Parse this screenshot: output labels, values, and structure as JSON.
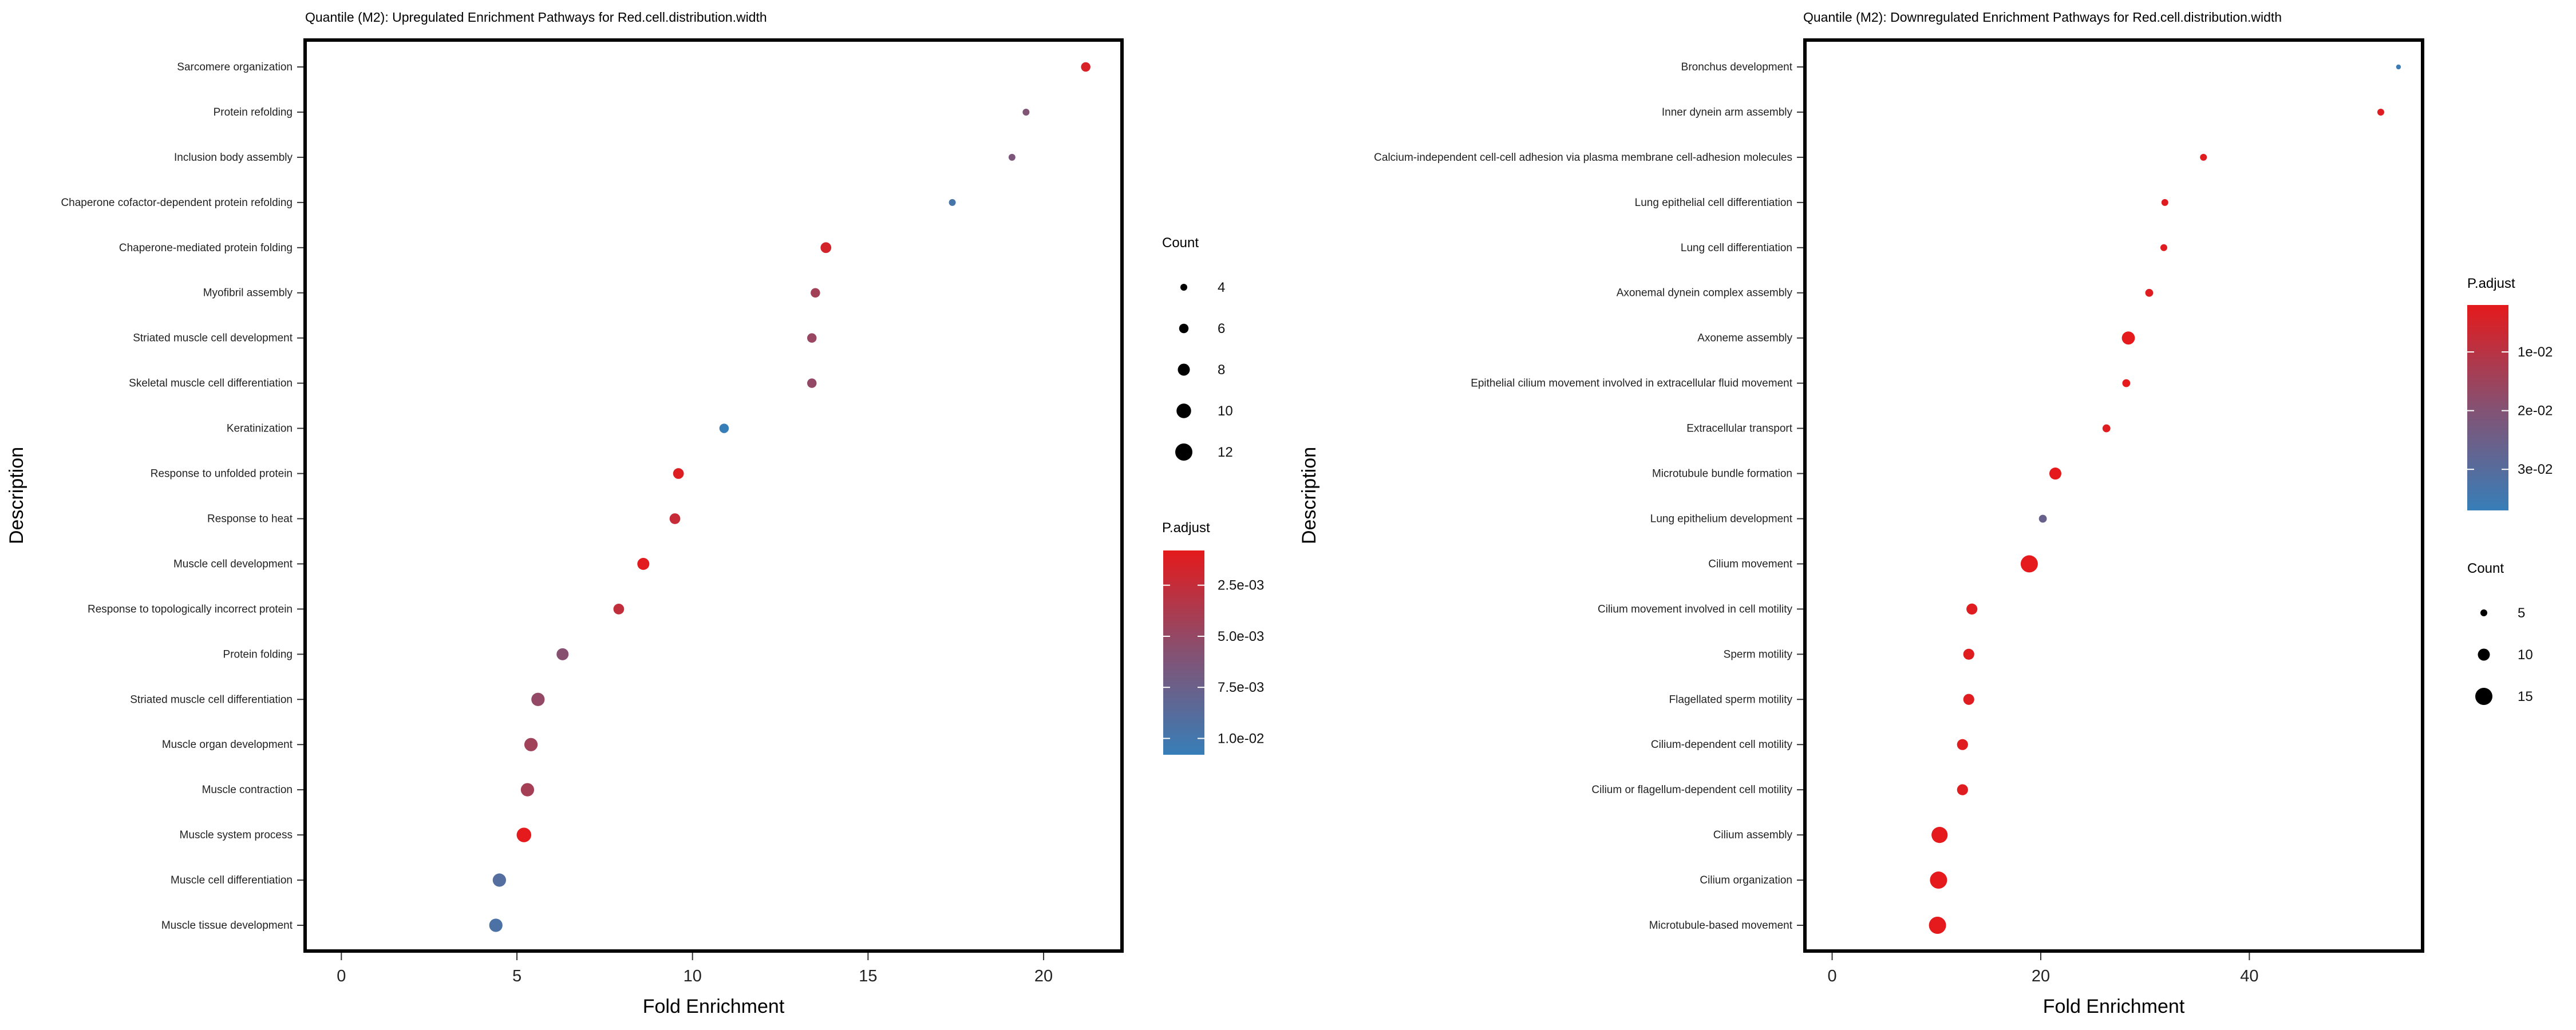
{
  "chart_data": [
    {
      "type": "scatter",
      "title": "Quantile (M2): Upregulated Enrichment Pathways for Red.cell.distribution.width",
      "xlabel": "Fold Enrichment",
      "ylabel": "Description",
      "xlim": [
        -1,
        22.2
      ],
      "xticks": [
        "0",
        "5",
        "10",
        "15",
        "20"
      ],
      "categories": [
        "Sarcomere organization",
        "Protein refolding",
        "Inclusion body assembly",
        "Chaperone cofactor-dependent protein refolding",
        "Chaperone-mediated protein folding",
        "Myofibril assembly",
        "Striated muscle cell development",
        "Skeletal muscle cell differentiation",
        "Keratinization",
        "Response to unfolded protein",
        "Response to heat",
        "Muscle cell development",
        "Response to topologically incorrect protein",
        "Protein folding",
        "Striated muscle cell differentiation",
        "Muscle organ development",
        "Muscle contraction",
        "Muscle system process",
        "Muscle cell differentiation",
        "Muscle tissue development"
      ],
      "x": [
        21.2,
        19.5,
        19.1,
        17.4,
        13.8,
        13.5,
        13.4,
        13.4,
        10.9,
        9.6,
        9.5,
        8.6,
        7.9,
        6.3,
        5.6,
        5.4,
        5.3,
        5.2,
        4.5,
        4.4
      ],
      "count": [
        6,
        4,
        4,
        4,
        7,
        6,
        6,
        6,
        6,
        7,
        7,
        8,
        7,
        8,
        9,
        9,
        9,
        10,
        9,
        9
      ],
      "p_adjust": [
        0.0015,
        0.0065,
        0.0068,
        0.0099,
        0.0018,
        0.0046,
        0.0052,
        0.0055,
        0.0108,
        0.0012,
        0.0025,
        0.0009,
        0.0028,
        0.0062,
        0.0055,
        0.0048,
        0.0045,
        0.0008,
        0.0092,
        0.0096
      ],
      "legend": {
        "count_title": "Count",
        "count_values": [
          4,
          6,
          8,
          10,
          12
        ],
        "count_labels": [
          "4",
          "6",
          "8",
          "10",
          "12"
        ],
        "color_title": "P.adjust",
        "color_range": [
          0.0008,
          0.0108
        ],
        "color_ticks": [
          0.0025,
          0.005,
          0.0075,
          0.01
        ],
        "color_labels": [
          "2.5e-03",
          "5.0e-03",
          "7.5e-03",
          "1.0e-02"
        ],
        "count_first": true
      },
      "colors": {
        "low": "#e41a1c",
        "high": "#377eb8"
      }
    },
    {
      "type": "scatter",
      "title": "Quantile (M2): Downregulated Enrichment Pathways for Red.cell.distribution.width",
      "xlabel": "Fold Enrichment",
      "ylabel": "Description",
      "xlim": [
        -2.5,
        56.5
      ],
      "xticks": [
        "0",
        "20",
        "40"
      ],
      "categories": [
        "Bronchus development",
        "Inner dynein arm assembly",
        "Calcium-independent cell-cell adhesion via plasma membrane cell-adhesion molecules",
        "Lung epithelial cell differentiation",
        "Lung cell differentiation",
        "Axonemal dynein complex assembly",
        "Axoneme assembly",
        "Epithelial cilium movement involved in extracellular fluid movement",
        "Extracellular transport",
        "Microtubule bundle formation",
        "Lung epithelium development",
        "Cilium movement",
        "Cilium movement involved in cell motility",
        "Sperm motility",
        "Flagellated sperm motility",
        "Cilium-dependent cell motility",
        "Cilium or flagellum-dependent cell motility",
        "Cilium assembly",
        "Cilium organization",
        "Microtubule-based movement"
      ],
      "x": [
        54.3,
        52.6,
        35.6,
        31.9,
        31.8,
        30.4,
        28.4,
        28.2,
        26.3,
        21.4,
        20.2,
        18.9,
        13.4,
        13.1,
        13.1,
        12.5,
        12.5,
        10.3,
        10.2,
        10.1
      ],
      "count": [
        3,
        5,
        5,
        5,
        5,
        6,
        11,
        6,
        6,
        10,
        6,
        15,
        9,
        9,
        9,
        9,
        9,
        14,
        15,
        15
      ],
      "p_adjust": [
        0.036,
        0.003,
        0.003,
        0.003,
        0.003,
        0.003,
        0.002,
        0.002,
        0.003,
        0.002,
        0.027,
        0.002,
        0.003,
        0.003,
        0.003,
        0.003,
        0.003,
        0.002,
        0.002,
        0.002
      ],
      "legend": {
        "count_title": "Count",
        "count_values": [
          5,
          10,
          15
        ],
        "count_labels": [
          "5",
          "10",
          "15"
        ],
        "color_title": "P.adjust",
        "color_range": [
          0.002,
          0.037
        ],
        "color_ticks": [
          0.01,
          0.02,
          0.03
        ],
        "color_labels": [
          "1e-02",
          "2e-02",
          "3e-02"
        ],
        "count_first": false
      },
      "colors": {
        "low": "#e41a1c",
        "high": "#377eb8"
      }
    }
  ]
}
